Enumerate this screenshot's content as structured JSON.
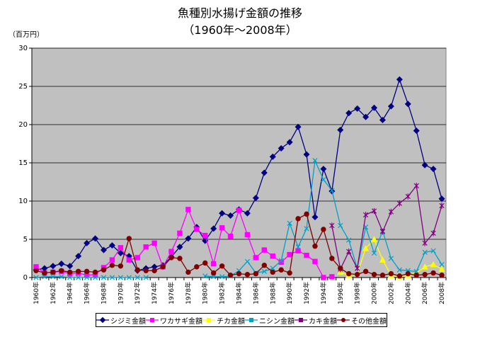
{
  "chart_data": {
    "type": "line",
    "title": "魚種別水揚げ金額の推移",
    "subtitle": "（1960年～2008年）",
    "ylabel": "（百万円）",
    "ylim": [
      0,
      30
    ],
    "yticks": [
      "0",
      "5",
      "10",
      "15",
      "20",
      "25",
      "30"
    ],
    "xtick_labels": [
      "1960年",
      "1962年",
      "1964年",
      "1966年",
      "1968年",
      "1970年",
      "1972年",
      "1974年",
      "1976年",
      "1978年",
      "1980年",
      "1982年",
      "1984年",
      "1986年",
      "1988年",
      "1990年",
      "1992年",
      "1994年",
      "1996年",
      "1998年",
      "2000年",
      "2002年",
      "2004年",
      "2006年",
      "2008年"
    ],
    "x": [
      1960,
      1961,
      1962,
      1963,
      1964,
      1965,
      1966,
      1967,
      1968,
      1969,
      1970,
      1971,
      1972,
      1973,
      1974,
      1975,
      1976,
      1977,
      1978,
      1979,
      1980,
      1981,
      1982,
      1983,
      1984,
      1985,
      1986,
      1987,
      1988,
      1989,
      1990,
      1991,
      1992,
      1993,
      1994,
      1995,
      1996,
      1997,
      1998,
      1999,
      2000,
      2001,
      2002,
      2003,
      2004,
      2005,
      2006,
      2007,
      2008
    ],
    "grid": "horizontal",
    "plot_background": "#c0c0c0",
    "legend_position": "bottom",
    "series": [
      {
        "name": "シジミ金額",
        "color": "#000080",
        "marker": "diamond",
        "values": [
          1.0,
          1.2,
          1.5,
          1.8,
          1.5,
          2.8,
          4.5,
          5.1,
          3.6,
          4.2,
          3.2,
          2.8,
          0.9,
          1.2,
          1.4,
          1.6,
          2.7,
          4.0,
          5.1,
          6.6,
          4.8,
          6.4,
          8.4,
          8.1,
          8.9,
          8.4,
          10.4,
          13.7,
          15.8,
          16.9,
          17.7,
          19.7,
          16.1,
          7.9,
          14.2,
          11.3,
          19.3,
          21.5,
          22.1,
          21.0,
          22.2,
          20.6,
          22.4,
          25.9,
          22.7,
          19.2,
          14.7,
          14.2,
          10.3
        ]
      },
      {
        "name": "ワカサギ金額",
        "color": "#ff00ff",
        "marker": "square",
        "values": [
          1.4,
          0.6,
          0.7,
          0.8,
          0.5,
          0.6,
          0.3,
          0.4,
          1.3,
          2.3,
          3.9,
          2.3,
          2.6,
          4.0,
          4.5,
          1.4,
          3.4,
          5.8,
          8.9,
          6.3,
          5.5,
          1.8,
          6.5,
          5.4,
          8.8,
          5.6,
          2.6,
          3.6,
          2.8,
          2.0,
          3.0,
          3.5,
          2.9,
          2.1,
          0.0,
          0.1,
          null,
          null,
          null,
          null,
          null,
          null,
          null,
          null,
          null,
          null,
          null,
          null,
          null
        ]
      },
      {
        "name": "チカ金額",
        "color": "#ffff00",
        "marker": "triangle",
        "values": [
          null,
          null,
          null,
          null,
          null,
          null,
          null,
          null,
          null,
          null,
          null,
          null,
          null,
          null,
          null,
          null,
          null,
          null,
          null,
          null,
          null,
          null,
          null,
          null,
          null,
          null,
          null,
          null,
          null,
          null,
          null,
          null,
          null,
          null,
          null,
          null,
          0.7,
          0.3,
          0.5,
          3.8,
          5.0,
          2.3,
          0.3,
          0.1,
          0.3,
          0.6,
          1.4,
          1.7,
          1.1
        ]
      },
      {
        "name": "ニシン金額",
        "color": "#00a0c8",
        "marker": "x",
        "values": [
          0.0,
          0.1,
          0.1,
          0.1,
          0.0,
          0.0,
          0.0,
          0.0,
          0.0,
          0.0,
          0.0,
          0.0,
          0.0,
          0.0,
          null,
          null,
          null,
          null,
          null,
          null,
          0.2,
          0.1,
          0.1,
          0.2,
          0.9,
          2.1,
          0.6,
          0.8,
          1.2,
          2.2,
          7.1,
          4.0,
          6.4,
          15.3,
          12.8,
          11.4,
          6.8,
          4.9,
          1.2,
          6.6,
          3.2,
          6.1,
          2.5,
          1.0,
          0.9,
          0.8,
          3.3,
          3.5,
          1.7
        ]
      },
      {
        "name": "カキ金額",
        "color": "#800080",
        "marker": "star",
        "values": [
          null,
          null,
          null,
          null,
          null,
          null,
          null,
          null,
          null,
          null,
          null,
          null,
          null,
          null,
          null,
          null,
          null,
          null,
          null,
          null,
          null,
          null,
          null,
          null,
          null,
          null,
          null,
          null,
          null,
          null,
          null,
          null,
          null,
          null,
          null,
          6.8,
          1.1,
          3.4,
          1.2,
          8.2,
          8.7,
          6.0,
          8.6,
          9.7,
          10.6,
          12.0,
          4.5,
          5.8,
          9.4
        ]
      },
      {
        "name": "その他金額",
        "color": "#800000",
        "marker": "circle",
        "values": [
          0.9,
          0.6,
          0.7,
          0.9,
          0.7,
          0.8,
          0.8,
          0.7,
          1.0,
          1.6,
          1.5,
          5.1,
          1.0,
          0.9,
          0.9,
          1.4,
          2.6,
          2.5,
          0.7,
          1.4,
          1.9,
          0.6,
          1.5,
          0.3,
          0.5,
          0.4,
          0.5,
          1.6,
          0.7,
          1.0,
          0.6,
          7.7,
          8.3,
          4.1,
          6.3,
          2.5,
          1.2,
          0.5,
          0.4,
          0.8,
          0.4,
          0.3,
          0.5,
          0.2,
          0.5,
          0.3,
          0.4,
          0.6,
          0.3
        ]
      }
    ]
  }
}
